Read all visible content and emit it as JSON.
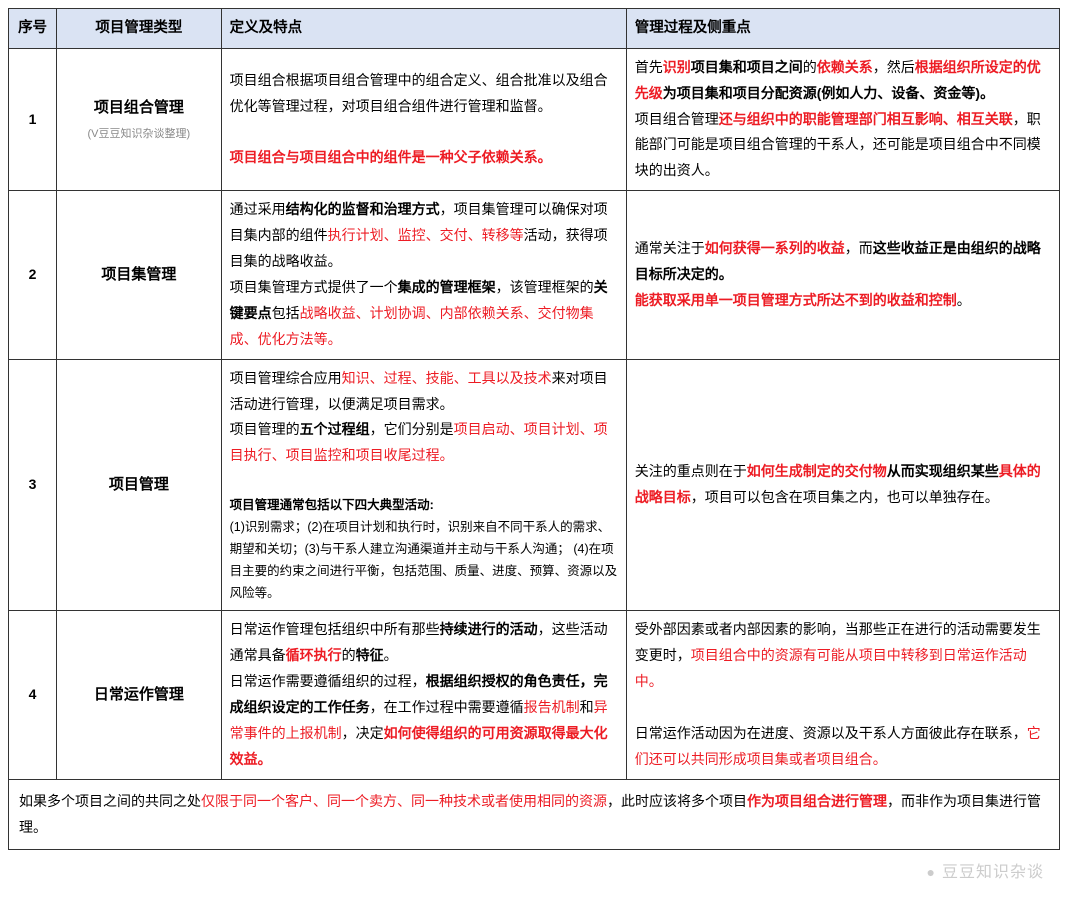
{
  "colors": {
    "header_bg": "#dae3f3",
    "border": "#333333",
    "text": "#000000",
    "highlight": "#ed1c24",
    "subtext": "#898989",
    "watermark": "#cccccc"
  },
  "headers": {
    "num": "序号",
    "type": "项目管理类型",
    "def": "定义及特点",
    "mgmt": "管理过程及侧重点"
  },
  "rows": [
    {
      "num": "1",
      "type_name": "项目组合管理",
      "type_sub": "(V豆豆知识杂谈整理)",
      "def_segments": [
        {
          "t": "项目组合根据项目组合管理中的组合定义、组合批准以及组合优化等管理过程，对项目组合组件进行管理和监督。",
          "c": "",
          "b": false,
          "br": true
        },
        {
          "t": "",
          "c": "",
          "b": false,
          "br": true
        },
        {
          "t": "项目组合与项目组合中的组件是一种父子依赖关系。",
          "c": "r",
          "b": true,
          "br": false
        }
      ],
      "mgmt_segments": [
        {
          "t": "首先",
          "c": "",
          "b": false,
          "br": false
        },
        {
          "t": "识别",
          "c": "r",
          "b": true,
          "br": false
        },
        {
          "t": "项目集和项目之间",
          "c": "",
          "b": true,
          "br": false
        },
        {
          "t": "的",
          "c": "",
          "b": false,
          "br": false
        },
        {
          "t": "依赖关系",
          "c": "r",
          "b": true,
          "br": false
        },
        {
          "t": "，然后",
          "c": "",
          "b": false,
          "br": false
        },
        {
          "t": "根据组织所设定的优先级",
          "c": "r",
          "b": true,
          "br": false
        },
        {
          "t": "为项目集和项目分配资源(例如人力、设备、资金等)。",
          "c": "",
          "b": true,
          "br": true
        },
        {
          "t": "项目组合管理",
          "c": "",
          "b": false,
          "br": false
        },
        {
          "t": "还与组织中的职能管理部门相互影响、相互关联",
          "c": "r",
          "b": true,
          "br": false
        },
        {
          "t": "，职能部门可能是项目组合管理的干系人，还可能是项目组合中不同模块的出资人。",
          "c": "",
          "b": false,
          "br": false
        }
      ]
    },
    {
      "num": "2",
      "type_name": "项目集管理",
      "type_sub": "",
      "def_segments": [
        {
          "t": "通过采用",
          "c": "",
          "b": false,
          "br": false
        },
        {
          "t": "结构化的监督和治理方式",
          "c": "",
          "b": true,
          "br": false
        },
        {
          "t": "，项目集管理可以确保对项目集内部的组件",
          "c": "",
          "b": false,
          "br": false
        },
        {
          "t": "执行计划、监控、交付、转移等",
          "c": "r",
          "b": false,
          "br": false
        },
        {
          "t": "活动，获得项目集的战略收益。",
          "c": "",
          "b": false,
          "br": true
        },
        {
          "t": "项目集管理方式提供了一个",
          "c": "",
          "b": false,
          "br": false
        },
        {
          "t": "集成的管理框架",
          "c": "",
          "b": true,
          "br": false
        },
        {
          "t": "，该管理框架的",
          "c": "",
          "b": false,
          "br": false
        },
        {
          "t": "关键要点",
          "c": "",
          "b": true,
          "br": false
        },
        {
          "t": "包括",
          "c": "",
          "b": false,
          "br": false
        },
        {
          "t": "战略收益、计划协调、内部依赖关系、交付物集成、优化方法等。",
          "c": "r",
          "b": false,
          "br": false
        }
      ],
      "mgmt_segments": [
        {
          "t": "通常关注于",
          "c": "",
          "b": false,
          "br": false
        },
        {
          "t": "如何获得一系列的收益",
          "c": "r",
          "b": true,
          "br": false
        },
        {
          "t": "，而",
          "c": "",
          "b": false,
          "br": false
        },
        {
          "t": "这些收益正是由组织的战略目标所决定的。",
          "c": "",
          "b": true,
          "br": true
        },
        {
          "t": "能获取采用单一项目管理方式所达不到的收益和控制",
          "c": "r",
          "b": true,
          "br": false
        },
        {
          "t": "。",
          "c": "",
          "b": false,
          "br": false
        }
      ]
    },
    {
      "num": "3",
      "type_name": "项目管理",
      "type_sub": "",
      "def_segments": [
        {
          "t": "项目管理综合应用",
          "c": "",
          "b": false,
          "br": false
        },
        {
          "t": "知识、过程、技能、工具以及技术",
          "c": "r",
          "b": false,
          "br": false
        },
        {
          "t": "来对项目活动进行管理，以便满足项目需求。",
          "c": "",
          "b": false,
          "br": true
        },
        {
          "t": "项目管理的",
          "c": "",
          "b": false,
          "br": false
        },
        {
          "t": "五个过程组",
          "c": "",
          "b": true,
          "br": false
        },
        {
          "t": "，它们分别是",
          "c": "",
          "b": false,
          "br": false
        },
        {
          "t": "项目启动、项目计划、项目执行、项目监控和项目收尾过程。",
          "c": "r",
          "b": false,
          "br": true
        },
        {
          "t": "",
          "c": "",
          "b": false,
          "br": true
        }
      ],
      "def_small": "项目管理通常包括以下四大典型活动:\n(1)识别需求；(2)在项目计划和执行时，识别来自不同干系人的需求、期望和关切；(3)与干系人建立沟通渠道并主动与干系人沟通； (4)在项目主要的约束之间进行平衡，包括范围、质量、进度、预算、资源以及风险等。",
      "mgmt_segments": [
        {
          "t": "关注的重点则在于",
          "c": "",
          "b": false,
          "br": false
        },
        {
          "t": "如何生成制定的交付物",
          "c": "r",
          "b": true,
          "br": false
        },
        {
          "t": "从而实现组织某些",
          "c": "",
          "b": true,
          "br": false
        },
        {
          "t": "具体的战略目标",
          "c": "r",
          "b": true,
          "br": false
        },
        {
          "t": "，项目可以包含在项目集之内，也可以单独存在。",
          "c": "",
          "b": false,
          "br": false
        }
      ]
    },
    {
      "num": "4",
      "type_name": "日常运作管理",
      "type_sub": "",
      "def_segments": [
        {
          "t": "日常运作管理包括组织中所有那些",
          "c": "",
          "b": false,
          "br": false
        },
        {
          "t": "持续进行的活动",
          "c": "",
          "b": true,
          "br": false
        },
        {
          "t": "，这些活动通常具备",
          "c": "",
          "b": false,
          "br": false
        },
        {
          "t": "循环执行",
          "c": "r",
          "b": true,
          "br": false
        },
        {
          "t": "的",
          "c": "",
          "b": false,
          "br": false
        },
        {
          "t": "特征",
          "c": "",
          "b": true,
          "br": false
        },
        {
          "t": "。",
          "c": "",
          "b": false,
          "br": true
        },
        {
          "t": "日常运作需要遵循组织的过程，",
          "c": "",
          "b": false,
          "br": false
        },
        {
          "t": "根据组织授权的角色责任，完成组织设定的工作任务",
          "c": "",
          "b": true,
          "br": false
        },
        {
          "t": "，在工作过程中需要遵循",
          "c": "",
          "b": false,
          "br": false
        },
        {
          "t": "报告机制",
          "c": "r",
          "b": false,
          "br": false
        },
        {
          "t": "和",
          "c": "",
          "b": false,
          "br": false
        },
        {
          "t": "异常事件的上报机制",
          "c": "r",
          "b": false,
          "br": false
        },
        {
          "t": "，决定",
          "c": "",
          "b": false,
          "br": false
        },
        {
          "t": "如何使得组织的可用资源取得最大化效益。",
          "c": "r",
          "b": true,
          "br": false
        }
      ],
      "mgmt_segments": [
        {
          "t": "受外部因素或者内部因素的影响，当那些正在进行的活动需要发生变更时，",
          "c": "",
          "b": false,
          "br": false
        },
        {
          "t": "项目组合中的资源有可能从项目中转移到日常运作活动中。",
          "c": "r",
          "b": false,
          "br": true
        },
        {
          "t": "",
          "c": "",
          "b": false,
          "br": true
        },
        {
          "t": "日常运作活动因为在进度、资源以及干系人方面彼此存在联系，",
          "c": "",
          "b": false,
          "br": false
        },
        {
          "t": "它们还可以共同形成项目集或者项目组合。",
          "c": "r",
          "b": false,
          "br": false
        }
      ]
    }
  ],
  "footer": [
    {
      "t": "如果多个项目之间的共同之处",
      "c": "",
      "b": false
    },
    {
      "t": "仅限于同一个客户、同一个卖方、同一种技术或者使用相同的资源",
      "c": "r",
      "b": false
    },
    {
      "t": "，此时应该将多个项目",
      "c": "",
      "b": false
    },
    {
      "t": "作为项目组合进行管理",
      "c": "r",
      "b": true
    },
    {
      "t": "，而非作为项目集进行管理。",
      "c": "",
      "b": false
    }
  ],
  "watermark": "豆豆知识杂谈"
}
